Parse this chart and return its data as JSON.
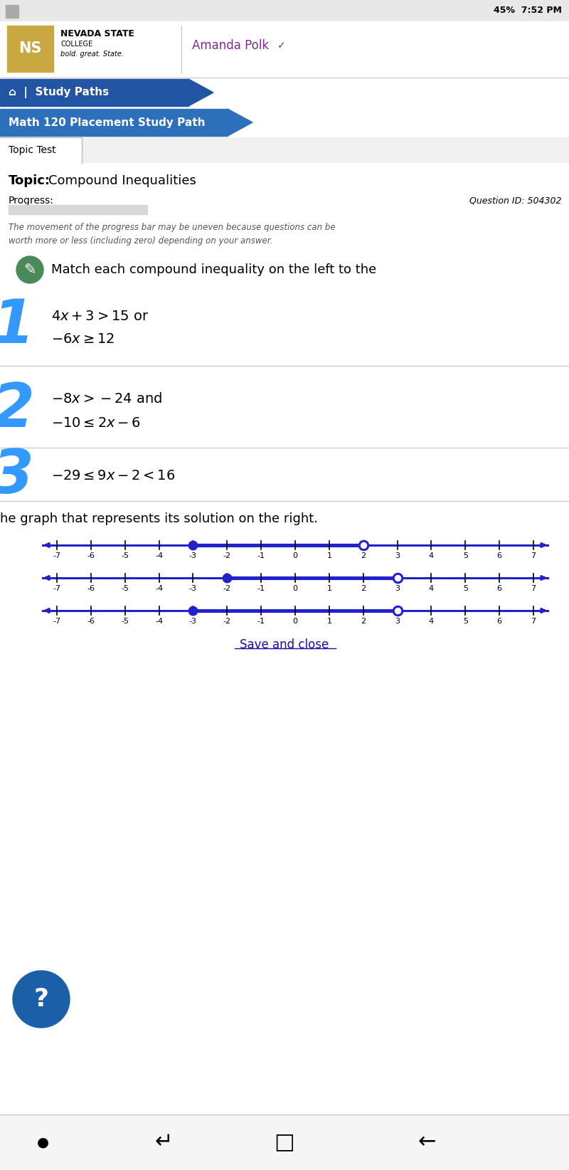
{
  "bg_color": "#f5f5f5",
  "white": "#ffffff",
  "breadcrumb1": "Study Paths",
  "breadcrumb2": "Math 120 Placement Study Path",
  "tab_text": "Topic Test",
  "topic_label": "Topic:",
  "topic_text": "Compound Inequalities",
  "progress_label": "Progress:",
  "question_id": "Question ID: 504302",
  "note_text": "The movement of the progress bar may be uneven because questions can be\nworth more or less (including zero) depending on your answer.",
  "instruction1": "Match each compound inequality on the left to the",
  "instruction2": "he graph that represents its solution on the right.",
  "ineq1_line1": "$4x + 3 > 15$ or",
  "ineq1_line2": "$-6x \\geq 12$",
  "ineq2_line1": "$-8x > -24$ and",
  "ineq2_line2": "$-10 \\leq 2x - 6$",
  "ineq3": "$-29 \\leq 9x - 2 < 16$",
  "num_values": [
    -7,
    -6,
    -5,
    -4,
    -3,
    -2,
    -1,
    0,
    1,
    2,
    3,
    4,
    5,
    6,
    7
  ],
  "number_line1": {
    "filled": -3,
    "open": 2
  },
  "number_line2": {
    "filled": -2,
    "open": 3
  },
  "number_line3": {
    "filled": -3,
    "open": 3
  },
  "line_color": "#2222cc",
  "save_close": "Save and close",
  "blue_number_color": "#3399ff",
  "nav_bg": "#2155a3",
  "nav_bg2": "#2c6fba"
}
